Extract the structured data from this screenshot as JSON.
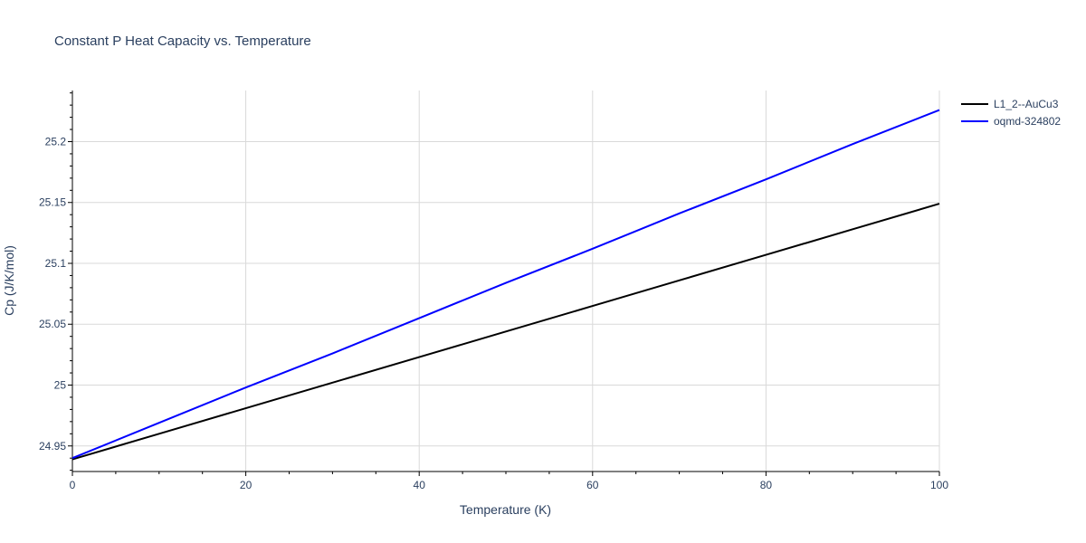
{
  "chart_data": {
    "type": "line",
    "title": "Constant P Heat Capacity vs. Temperature",
    "xlabel": "Temperature (K)",
    "ylabel": "Cp (J/K/mol)",
    "xlim": [
      0,
      100
    ],
    "ylim": [
      24.929,
      25.242
    ],
    "x_ticks": [
      0,
      20,
      40,
      60,
      80,
      100
    ],
    "y_ticks": [
      24.95,
      25,
      25.05,
      25.1,
      25.15,
      25.2
    ],
    "x_tick_labels": [
      "0",
      "20",
      "40",
      "60",
      "80",
      "100"
    ],
    "y_tick_labels": [
      "24.95",
      "25",
      "25.05",
      "25.1",
      "25.15",
      "25.2"
    ],
    "grid": true,
    "legend_position": "top-right",
    "series": [
      {
        "name": "L1_2--AuCu3",
        "color": "#000000",
        "x": [
          0,
          10,
          20,
          30,
          40,
          50,
          60,
          70,
          80,
          90,
          100
        ],
        "values": [
          24.939,
          24.96,
          24.981,
          25.002,
          25.023,
          25.044,
          25.065,
          25.086,
          25.107,
          25.128,
          25.149
        ]
      },
      {
        "name": "oqmd-324802",
        "color": "#0000ff",
        "x": [
          0,
          10,
          20,
          30,
          40,
          50,
          60,
          70,
          80,
          90,
          100
        ],
        "values": [
          24.94,
          24.969,
          24.998,
          25.026,
          25.055,
          25.084,
          25.112,
          25.141,
          25.169,
          25.198,
          25.226
        ]
      }
    ]
  }
}
